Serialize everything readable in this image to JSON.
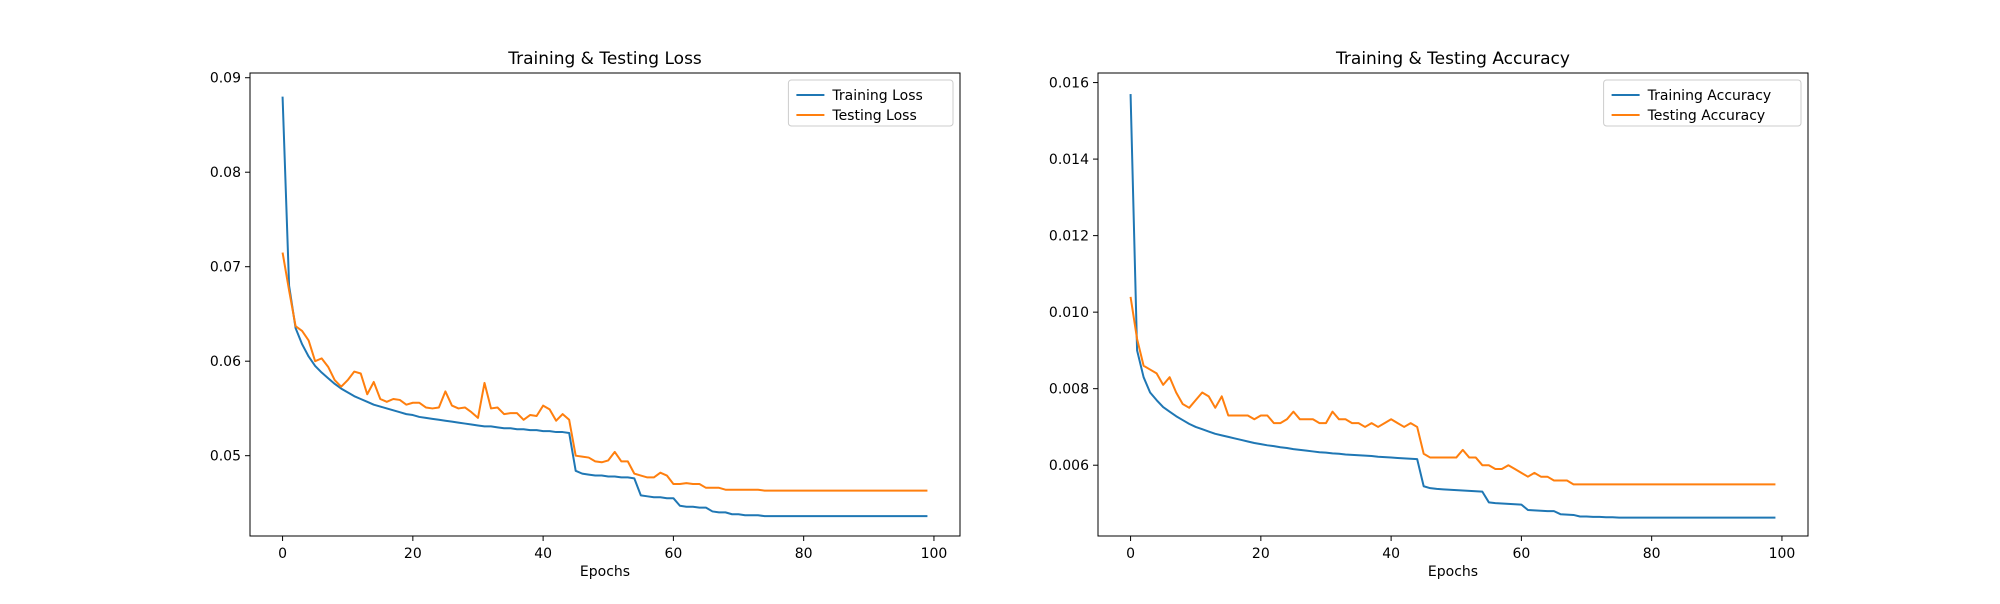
{
  "colors": {
    "training": "#1f77b4",
    "testing": "#ff7f0e"
  },
  "chart_data": [
    {
      "type": "line",
      "title": "Training & Testing Loss",
      "xlabel": "Epochs",
      "ylabel": "",
      "xlim": [
        -5,
        104
      ],
      "ylim": [
        0.0415,
        0.0905
      ],
      "xticks": [
        0,
        20,
        40,
        60,
        80,
        100
      ],
      "yticks": [
        0.05,
        0.06,
        0.07,
        0.08,
        0.09
      ],
      "ytick_labels": [
        "0.05",
        "0.06",
        "0.07",
        "0.08",
        "0.09"
      ],
      "grid": false,
      "legend": "top-right",
      "series": [
        {
          "name": "Training Loss",
          "x": [
            0,
            1,
            2,
            3,
            4,
            5,
            6,
            7,
            8,
            9,
            10,
            11,
            12,
            13,
            14,
            15,
            16,
            17,
            18,
            19,
            20,
            21,
            22,
            23,
            24,
            25,
            26,
            27,
            28,
            29,
            30,
            31,
            32,
            33,
            34,
            35,
            36,
            37,
            38,
            39,
            40,
            41,
            42,
            43,
            44,
            45,
            46,
            47,
            48,
            49,
            50,
            51,
            52,
            53,
            54,
            55,
            56,
            57,
            58,
            59,
            60,
            61,
            62,
            63,
            64,
            65,
            66,
            67,
            68,
            69,
            70,
            71,
            72,
            73,
            74,
            75,
            76,
            77,
            78,
            79,
            80,
            81,
            82,
            83,
            84,
            85,
            86,
            87,
            88,
            89,
            90,
            91,
            92,
            93,
            94,
            95,
            96,
            97,
            98,
            99
          ],
          "y": [
            0.088,
            0.068,
            0.0635,
            0.0618,
            0.0605,
            0.0595,
            0.0588,
            0.0582,
            0.0576,
            0.0571,
            0.0567,
            0.0563,
            0.056,
            0.0557,
            0.0554,
            0.0552,
            0.055,
            0.0548,
            0.0546,
            0.0544,
            0.0543,
            0.0541,
            0.054,
            0.0539,
            0.0538,
            0.0537,
            0.0536,
            0.0535,
            0.0534,
            0.0533,
            0.0532,
            0.0531,
            0.0531,
            0.053,
            0.0529,
            0.0529,
            0.0528,
            0.0528,
            0.0527,
            0.0527,
            0.0526,
            0.0526,
            0.0525,
            0.0525,
            0.0524,
            0.0484,
            0.0481,
            0.048,
            0.0479,
            0.0479,
            0.0478,
            0.0478,
            0.0477,
            0.0477,
            0.0476,
            0.0458,
            0.0457,
            0.0456,
            0.0456,
            0.0455,
            0.0455,
            0.0447,
            0.0446,
            0.0446,
            0.0445,
            0.0445,
            0.0441,
            0.044,
            0.044,
            0.0438,
            0.0438,
            0.0437,
            0.0437,
            0.0437,
            0.0436,
            0.0436,
            0.0436,
            0.0436,
            0.0436,
            0.0436,
            0.0436,
            0.0436,
            0.0436,
            0.0436,
            0.0436,
            0.0436,
            0.0436,
            0.0436,
            0.0436,
            0.0436,
            0.0436,
            0.0436,
            0.0436,
            0.0436,
            0.0436,
            0.0436,
            0.0436,
            0.0436,
            0.0436,
            0.0436
          ]
        },
        {
          "name": "Testing Loss",
          "x": [
            0,
            1,
            2,
            3,
            4,
            5,
            6,
            7,
            8,
            9,
            10,
            11,
            12,
            13,
            14,
            15,
            16,
            17,
            18,
            19,
            20,
            21,
            22,
            23,
            24,
            25,
            26,
            27,
            28,
            29,
            30,
            31,
            32,
            33,
            34,
            35,
            36,
            37,
            38,
            39,
            40,
            41,
            42,
            43,
            44,
            45,
            46,
            47,
            48,
            49,
            50,
            51,
            52,
            53,
            54,
            55,
            56,
            57,
            58,
            59,
            60,
            61,
            62,
            63,
            64,
            65,
            66,
            67,
            68,
            69,
            70,
            71,
            72,
            73,
            74,
            75,
            76,
            77,
            78,
            79,
            80,
            81,
            82,
            83,
            84,
            85,
            86,
            87,
            88,
            89,
            90,
            91,
            92,
            93,
            94,
            95,
            96,
            97,
            98,
            99
          ],
          "y": [
            0.0715,
            0.0675,
            0.0637,
            0.0632,
            0.0622,
            0.06,
            0.0603,
            0.0594,
            0.058,
            0.0573,
            0.058,
            0.0589,
            0.0587,
            0.0565,
            0.0578,
            0.056,
            0.0557,
            0.056,
            0.0559,
            0.0554,
            0.0556,
            0.0556,
            0.0551,
            0.055,
            0.0551,
            0.0568,
            0.0553,
            0.055,
            0.0551,
            0.0546,
            0.054,
            0.0577,
            0.055,
            0.0551,
            0.0544,
            0.0545,
            0.0545,
            0.0538,
            0.0543,
            0.0542,
            0.0553,
            0.0549,
            0.0537,
            0.0544,
            0.0538,
            0.05,
            0.0499,
            0.0498,
            0.0494,
            0.0493,
            0.0495,
            0.0504,
            0.0494,
            0.0494,
            0.0481,
            0.0479,
            0.0477,
            0.0477,
            0.0482,
            0.0479,
            0.047,
            0.047,
            0.0471,
            0.047,
            0.047,
            0.0466,
            0.0466,
            0.0466,
            0.0464,
            0.0464,
            0.0464,
            0.0464,
            0.0464,
            0.0464,
            0.0463,
            0.0463,
            0.0463,
            0.0463,
            0.0463,
            0.0463,
            0.0463,
            0.0463,
            0.0463,
            0.0463,
            0.0463,
            0.0463,
            0.0463,
            0.0463,
            0.0463,
            0.0463,
            0.0463,
            0.0463,
            0.0463,
            0.0463,
            0.0463,
            0.0463,
            0.0463,
            0.0463,
            0.0463,
            0.0463
          ]
        }
      ]
    },
    {
      "type": "line",
      "title": "Training & Testing Accuracy",
      "xlabel": "Epochs",
      "ylabel": "",
      "xlim": [
        -5,
        104
      ],
      "ylim": [
        0.00415,
        0.01625
      ],
      "xticks": [
        0,
        20,
        40,
        60,
        80,
        100
      ],
      "yticks": [
        0.006,
        0.008,
        0.01,
        0.012,
        0.014,
        0.016
      ],
      "ytick_labels": [
        "0.006",
        "0.008",
        "0.010",
        "0.012",
        "0.014",
        "0.016"
      ],
      "grid": false,
      "legend": "top-right",
      "series": [
        {
          "name": "Training Accuracy",
          "x": [
            0,
            1,
            2,
            3,
            4,
            5,
            6,
            7,
            8,
            9,
            10,
            11,
            12,
            13,
            14,
            15,
            16,
            17,
            18,
            19,
            20,
            21,
            22,
            23,
            24,
            25,
            26,
            27,
            28,
            29,
            30,
            31,
            32,
            33,
            34,
            35,
            36,
            37,
            38,
            39,
            40,
            41,
            42,
            43,
            44,
            45,
            46,
            47,
            48,
            49,
            50,
            51,
            52,
            53,
            54,
            55,
            56,
            57,
            58,
            59,
            60,
            61,
            62,
            63,
            64,
            65,
            66,
            67,
            68,
            69,
            70,
            71,
            72,
            73,
            74,
            75,
            76,
            77,
            78,
            79,
            80,
            81,
            82,
            83,
            84,
            85,
            86,
            87,
            88,
            89,
            90,
            91,
            92,
            93,
            94,
            95,
            96,
            97,
            98,
            99
          ],
          "y": [
            0.0157,
            0.009,
            0.0083,
            0.0079,
            0.0077,
            0.00752,
            0.0074,
            0.00728,
            0.00718,
            0.00708,
            0.007,
            0.00694,
            0.00688,
            0.00682,
            0.00678,
            0.00674,
            0.0067,
            0.00666,
            0.00662,
            0.00658,
            0.00655,
            0.00652,
            0.0065,
            0.00647,
            0.00645,
            0.00642,
            0.0064,
            0.00638,
            0.00636,
            0.00634,
            0.00633,
            0.00631,
            0.0063,
            0.00628,
            0.00627,
            0.00626,
            0.00625,
            0.00624,
            0.00622,
            0.00621,
            0.0062,
            0.00619,
            0.00618,
            0.00617,
            0.00616,
            0.00545,
            0.0054,
            0.00538,
            0.00537,
            0.00536,
            0.00535,
            0.00534,
            0.00533,
            0.00532,
            0.00531,
            0.00503,
            0.00501,
            0.005,
            0.00499,
            0.00498,
            0.00497,
            0.00483,
            0.00482,
            0.00481,
            0.0048,
            0.0048,
            0.00472,
            0.00471,
            0.0047,
            0.00466,
            0.00466,
            0.00465,
            0.00465,
            0.00464,
            0.00464,
            0.00463,
            0.00463,
            0.00463,
            0.00463,
            0.00463,
            0.00463,
            0.00463,
            0.00463,
            0.00463,
            0.00463,
            0.00463,
            0.00463,
            0.00463,
            0.00463,
            0.00463,
            0.00463,
            0.00463,
            0.00463,
            0.00463,
            0.00463,
            0.00463,
            0.00463,
            0.00463,
            0.00463,
            0.00463
          ]
        },
        {
          "name": "Testing Accuracy",
          "x": [
            0,
            1,
            2,
            3,
            4,
            5,
            6,
            7,
            8,
            9,
            10,
            11,
            12,
            13,
            14,
            15,
            16,
            17,
            18,
            19,
            20,
            21,
            22,
            23,
            24,
            25,
            26,
            27,
            28,
            29,
            30,
            31,
            32,
            33,
            34,
            35,
            36,
            37,
            38,
            39,
            40,
            41,
            42,
            43,
            44,
            45,
            46,
            47,
            48,
            49,
            50,
            51,
            52,
            53,
            54,
            55,
            56,
            57,
            58,
            59,
            60,
            61,
            62,
            63,
            64,
            65,
            66,
            67,
            68,
            69,
            70,
            71,
            72,
            73,
            74,
            75,
            76,
            77,
            78,
            79,
            80,
            81,
            82,
            83,
            84,
            85,
            86,
            87,
            88,
            89,
            90,
            91,
            92,
            93,
            94,
            95,
            96,
            97,
            98,
            99
          ],
          "y": [
            0.0104,
            0.0093,
            0.0086,
            0.0085,
            0.0084,
            0.0081,
            0.0083,
            0.0079,
            0.0076,
            0.0075,
            0.0077,
            0.0079,
            0.0078,
            0.0075,
            0.0078,
            0.0073,
            0.0073,
            0.0073,
            0.0073,
            0.0072,
            0.0073,
            0.0073,
            0.0071,
            0.0071,
            0.0072,
            0.0074,
            0.0072,
            0.0072,
            0.0072,
            0.0071,
            0.0071,
            0.0074,
            0.0072,
            0.0072,
            0.0071,
            0.0071,
            0.007,
            0.0071,
            0.007,
            0.0071,
            0.0072,
            0.0071,
            0.007,
            0.0071,
            0.007,
            0.0063,
            0.0062,
            0.0062,
            0.0062,
            0.0062,
            0.0062,
            0.0064,
            0.0062,
            0.0062,
            0.006,
            0.006,
            0.0059,
            0.0059,
            0.006,
            0.0059,
            0.0058,
            0.0057,
            0.0058,
            0.0057,
            0.0057,
            0.0056,
            0.0056,
            0.0056,
            0.0055,
            0.0055,
            0.0055,
            0.0055,
            0.0055,
            0.0055,
            0.0055,
            0.0055,
            0.0055,
            0.0055,
            0.0055,
            0.0055,
            0.0055,
            0.0055,
            0.0055,
            0.0055,
            0.0055,
            0.0055,
            0.0055,
            0.0055,
            0.0055,
            0.0055,
            0.0055,
            0.0055,
            0.0055,
            0.0055,
            0.0055,
            0.0055,
            0.0055,
            0.0055,
            0.0055,
            0.0055
          ]
        }
      ]
    }
  ]
}
